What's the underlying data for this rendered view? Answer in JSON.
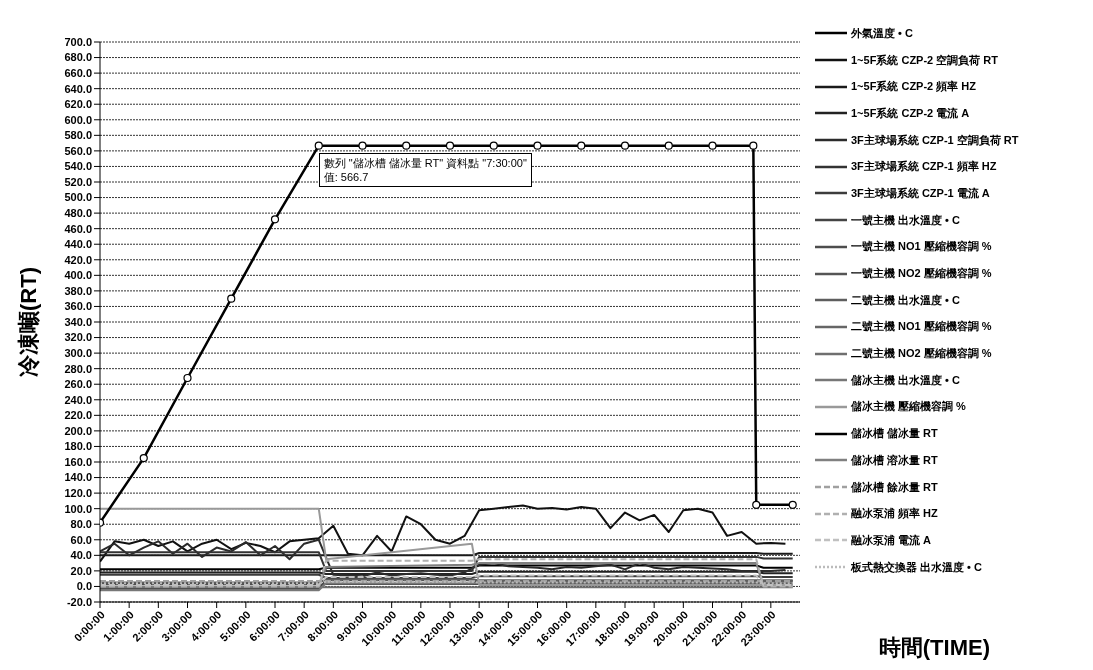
{
  "chart_data": {
    "type": "line",
    "xlabel": "時間(TIME)",
    "ylabel": "冷凍噸(RT)",
    "xlim": [
      0,
      24
    ],
    "ylim": [
      -20,
      700
    ],
    "xticks": [
      {
        "value": 0,
        "label": "0:00:00"
      },
      {
        "value": 1,
        "label": "1:00:00"
      },
      {
        "value": 2,
        "label": "2:00:00"
      },
      {
        "value": 3,
        "label": "3:00:00"
      },
      {
        "value": 4,
        "label": "4:00:00"
      },
      {
        "value": 5,
        "label": "5:00:00"
      },
      {
        "value": 6,
        "label": "6:00:00"
      },
      {
        "value": 7,
        "label": "7:00:00"
      },
      {
        "value": 8,
        "label": "8:00:00"
      },
      {
        "value": 9,
        "label": "9:00:00"
      },
      {
        "value": 10,
        "label": "10:00:00"
      },
      {
        "value": 11,
        "label": "11:00:00"
      },
      {
        "value": 12,
        "label": "12:00:00"
      },
      {
        "value": 13,
        "label": "13:00:00"
      },
      {
        "value": 14,
        "label": "14:00:00"
      },
      {
        "value": 15,
        "label": "15:00:00"
      },
      {
        "value": 16,
        "label": "16:00:00"
      },
      {
        "value": 17,
        "label": "17:00:00"
      },
      {
        "value": 18,
        "label": "18:00:00"
      },
      {
        "value": 19,
        "label": "19:00:00"
      },
      {
        "value": 20,
        "label": "20:00:00"
      },
      {
        "value": 21,
        "label": "21:00:00"
      },
      {
        "value": 22,
        "label": "22:00:00"
      },
      {
        "value": 23,
        "label": "23:00:00"
      }
    ],
    "yticks": [
      {
        "value": -20,
        "label": "-20.0"
      },
      {
        "value": 0,
        "label": "0.0"
      },
      {
        "value": 20,
        "label": "20.0"
      },
      {
        "value": 40,
        "label": "40.0"
      },
      {
        "value": 60,
        "label": "60.0"
      },
      {
        "value": 80,
        "label": "80.0"
      },
      {
        "value": 100,
        "label": "100.0"
      },
      {
        "value": 120,
        "label": "120.0"
      },
      {
        "value": 140,
        "label": "140.0"
      },
      {
        "value": 160,
        "label": "160.0"
      },
      {
        "value": 180,
        "label": "180.0"
      },
      {
        "value": 200,
        "label": "200.0"
      },
      {
        "value": 220,
        "label": "220.0"
      },
      {
        "value": 240,
        "label": "240.0"
      },
      {
        "value": 260,
        "label": "260.0"
      },
      {
        "value": 280,
        "label": "280.0"
      },
      {
        "value": 300,
        "label": "300.0"
      },
      {
        "value": 320,
        "label": "320.0"
      },
      {
        "value": 340,
        "label": "340.0"
      },
      {
        "value": 360,
        "label": "360.0"
      },
      {
        "value": 380,
        "label": "380.0"
      },
      {
        "value": 400,
        "label": "400.0"
      },
      {
        "value": 420,
        "label": "420.0"
      },
      {
        "value": 440,
        "label": "440.0"
      },
      {
        "value": 460,
        "label": "460.0"
      },
      {
        "value": 480,
        "label": "480.0"
      },
      {
        "value": 500,
        "label": "500.0"
      },
      {
        "value": 520,
        "label": "520.0"
      },
      {
        "value": 540,
        "label": "540.0"
      },
      {
        "value": 560,
        "label": "560.0"
      },
      {
        "value": 580,
        "label": "580.0"
      },
      {
        "value": 600,
        "label": "600.0"
      },
      {
        "value": 620,
        "label": "620.0"
      },
      {
        "value": 640,
        "label": "640.0"
      },
      {
        "value": 660,
        "label": "660.0"
      },
      {
        "value": 680,
        "label": "680.0"
      },
      {
        "value": 700,
        "label": "700.0"
      }
    ],
    "grid": "y",
    "legend": "right",
    "marker": "none",
    "annotations": [
      {
        "text": "數列 \"儲冰槽 儲冰量 RT\" 資料點 \"7:30:00\"\n值: 566.7",
        "x": 7.5,
        "y": 566.7
      }
    ],
    "series": [
      {
        "name": "外氣溫度 • C",
        "color": "#000000",
        "x": [
          0,
          7.5,
          7.75,
          12.75,
          13,
          22.5,
          22.75,
          23.75
        ],
        "values": [
          22,
          22,
          24,
          24,
          27,
          27,
          24,
          24
        ]
      },
      {
        "name": "1~5F系統 CZP-2 空調負荷 RT",
        "color": "#111111",
        "x": [
          0,
          0.5,
          1,
          1.5,
          2,
          2.5,
          3,
          3.5,
          4,
          4.5,
          5,
          5.5,
          6,
          6.5,
          7,
          7.5,
          8,
          8.5,
          9,
          9.5,
          10,
          10.5,
          11,
          11.5,
          12,
          12.5,
          13,
          13.5,
          14,
          14.5,
          15,
          15.5,
          16,
          16.5,
          17,
          17.5,
          18,
          18.5,
          19,
          19.5,
          20,
          20.5,
          21,
          21.5,
          22,
          22.5,
          23,
          23.5
        ],
        "values": [
          32,
          58,
          55,
          60,
          52,
          58,
          45,
          55,
          60,
          48,
          56,
          52,
          44,
          58,
          60,
          62,
          78,
          42,
          40,
          65,
          45,
          90,
          80,
          60,
          55,
          65,
          98,
          100,
          102,
          104,
          100,
          101,
          99,
          102,
          100,
          75,
          95,
          85,
          92,
          70,
          98,
          100,
          95,
          65,
          70,
          55,
          56,
          55
        ]
      },
      {
        "name": "1~5F系統 CZP-2 頻率 HZ",
        "color": "#1a1a1a",
        "x": [
          0,
          7.5,
          7.75,
          12.75,
          13,
          22.5,
          22.75,
          23.75
        ],
        "values": [
          40,
          40,
          40,
          40,
          43,
          43,
          42,
          42
        ]
      },
      {
        "name": "1~5F系統 CZP-2 電流 A",
        "color": "#222222",
        "x": [
          0,
          7.5,
          7.75,
          12.75,
          13,
          22.5,
          22.75,
          23.75
        ],
        "values": [
          18,
          18,
          16,
          16,
          19,
          19,
          17,
          17
        ]
      },
      {
        "name": "3F主球場系統 CZP-1 空調負荷 RT",
        "color": "#2b2b2b",
        "x": [
          0,
          0.5,
          1,
          1.5,
          2,
          2.5,
          3,
          3.5,
          4,
          4.5,
          5,
          5.5,
          6,
          6.5,
          7,
          7.5,
          8,
          8.5,
          9,
          9.5,
          10,
          10.5,
          11,
          11.5,
          12,
          12.5,
          13,
          13.5,
          14,
          14.5,
          15,
          15.5,
          16,
          16.5,
          17,
          17.5,
          18,
          18.5,
          19,
          19.5,
          20,
          20.5,
          21,
          21.5,
          22,
          22.5,
          23,
          23.5
        ],
        "values": [
          45,
          55,
          40,
          50,
          58,
          42,
          55,
          38,
          50,
          45,
          57,
          40,
          52,
          35,
          55,
          60,
          15,
          14,
          13,
          18,
          14,
          16,
          17,
          15,
          14,
          18,
          28,
          30,
          26,
          25,
          24,
          22,
          25,
          24,
          26,
          28,
          22,
          30,
          24,
          22,
          25,
          24,
          23,
          22,
          20,
          20,
          20,
          21
        ]
      },
      {
        "name": "3F主球場系統 CZP-1 頻率 HZ",
        "color": "#333333",
        "x": [
          0,
          7.5,
          7.75,
          12.75,
          13,
          22.5,
          22.75,
          23.75
        ],
        "values": [
          44,
          44,
          20,
          20,
          38,
          38,
          36,
          36
        ]
      },
      {
        "name": "3F主球場系統 CZP-1 電流 A",
        "color": "#3c3c3c",
        "x": [
          0,
          7.5,
          7.75,
          12.75,
          13,
          22.5,
          22.75,
          23.75
        ],
        "values": [
          15,
          15,
          11,
          11,
          13,
          13,
          12,
          12
        ]
      },
      {
        "name": "一號主機 出水溫度 • C",
        "color": "#444444",
        "x": [
          0,
          7.5,
          7.75,
          12.75,
          13,
          22.5,
          22.75,
          23.75
        ],
        "values": [
          -3,
          -3,
          8,
          8,
          6,
          6,
          7,
          7
        ]
      },
      {
        "name": "一號主機 NO1 壓縮機容調 %",
        "color": "#4d4d4d",
        "x": [
          0,
          7.5,
          7.75,
          12.75,
          13,
          22.5,
          22.75,
          23.75
        ],
        "values": [
          3,
          3,
          3,
          3,
          3,
          3,
          3,
          3
        ]
      },
      {
        "name": "一號主機 NO2 壓縮機容調 %",
        "color": "#555555",
        "values": [
          null,
          null,
          null,
          null,
          null,
          null,
          null,
          null
        ]
      },
      {
        "name": "二號主機 出水溫度 • C",
        "color": "#5e5e5e",
        "x": [
          0,
          7.5,
          7.75,
          12.75,
          13,
          22.5,
          22.75,
          23.75
        ],
        "values": [
          5,
          5,
          9,
          9,
          8,
          8,
          8,
          8
        ]
      },
      {
        "name": "二號主機 NO1 壓縮機容調 %",
        "color": "#666666",
        "values": [
          null,
          null,
          null,
          null,
          null,
          null,
          null,
          null
        ]
      },
      {
        "name": "二號主機 NO2 壓縮機容調 %",
        "color": "#6f6f6f",
        "x": [
          0,
          7.5,
          7.75,
          12.75,
          13,
          22.5,
          22.75,
          23.75
        ],
        "values": [
          -1,
          -1,
          -1,
          -1,
          -1,
          -1,
          -1,
          -1
        ]
      },
      {
        "name": "儲冰主機 出水溫度 • C",
        "color": "#777777",
        "x": [
          0,
          7.5,
          7.75,
          12.75,
          13,
          22.5,
          22.75,
          23.75
        ],
        "values": [
          -5,
          -5,
          4,
          4,
          5,
          5,
          5,
          5
        ]
      },
      {
        "name": "儲冰主機 壓縮機容調 %",
        "color": "#999999",
        "x": [
          0,
          7.5,
          7.75,
          12.75,
          13,
          22.5,
          22.75,
          23.75
        ],
        "values": [
          100,
          100,
          35,
          55,
          2,
          2,
          2,
          2
        ]
      },
      {
        "name": "儲冰槽 儲冰量 RT",
        "color": "#000000",
        "marker": "circle",
        "x": [
          0,
          1.5,
          3,
          4.5,
          6,
          7.5,
          9,
          10.5,
          12,
          13.5,
          15,
          16.5,
          18,
          19.5,
          21,
          22.4,
          22.5,
          23.75
        ],
        "values": [
          82,
          165,
          268,
          370,
          472,
          566.7,
          566.7,
          566.7,
          566.7,
          566.7,
          566.7,
          566.7,
          566.7,
          566.7,
          566.7,
          566.7,
          105,
          105
        ]
      },
      {
        "name": "儲冰槽 溶冰量 RT",
        "color": "#808080",
        "x": [
          0,
          7.5,
          7.75,
          12.75,
          13,
          22.5,
          22.75,
          23.75
        ],
        "values": [
          0,
          0,
          25,
          28,
          30,
          30,
          0,
          0
        ]
      },
      {
        "name": "儲冰槽 餘冰量 RT",
        "color": "#a0a0a0",
        "line_style": "dashed",
        "x": [
          0,
          7.5,
          7.75,
          12.75,
          13,
          22.5,
          22.75,
          23.75
        ],
        "values": [
          7,
          7,
          7,
          7,
          7,
          7,
          7,
          7
        ]
      },
      {
        "name": "融冰泵浦 頻率 HZ",
        "color": "#b0b0b0",
        "line_style": "dashed",
        "x": [
          0,
          7.5,
          7.75,
          12.75,
          13,
          22.5,
          22.75,
          23.75
        ],
        "values": [
          0,
          0,
          33,
          33,
          35,
          35,
          0,
          0
        ]
      },
      {
        "name": "融冰泵浦 電流 A",
        "color": "#c0c0c0",
        "line_style": "dashed",
        "x": [
          0,
          7.5,
          7.75,
          12.75,
          13,
          22.5,
          22.75,
          23.75
        ],
        "values": [
          2,
          2,
          12,
          12,
          14,
          14,
          2,
          2
        ]
      },
      {
        "name": "板式熱交換器 出水溫度 • C",
        "color": "#bbbbbb",
        "line_style": "dotted",
        "x": [
          0,
          7.5,
          7.75,
          12.75,
          13,
          22.5,
          22.75,
          23.75
        ],
        "values": [
          4,
          4,
          6,
          6,
          5,
          5,
          4,
          4
        ]
      }
    ]
  }
}
